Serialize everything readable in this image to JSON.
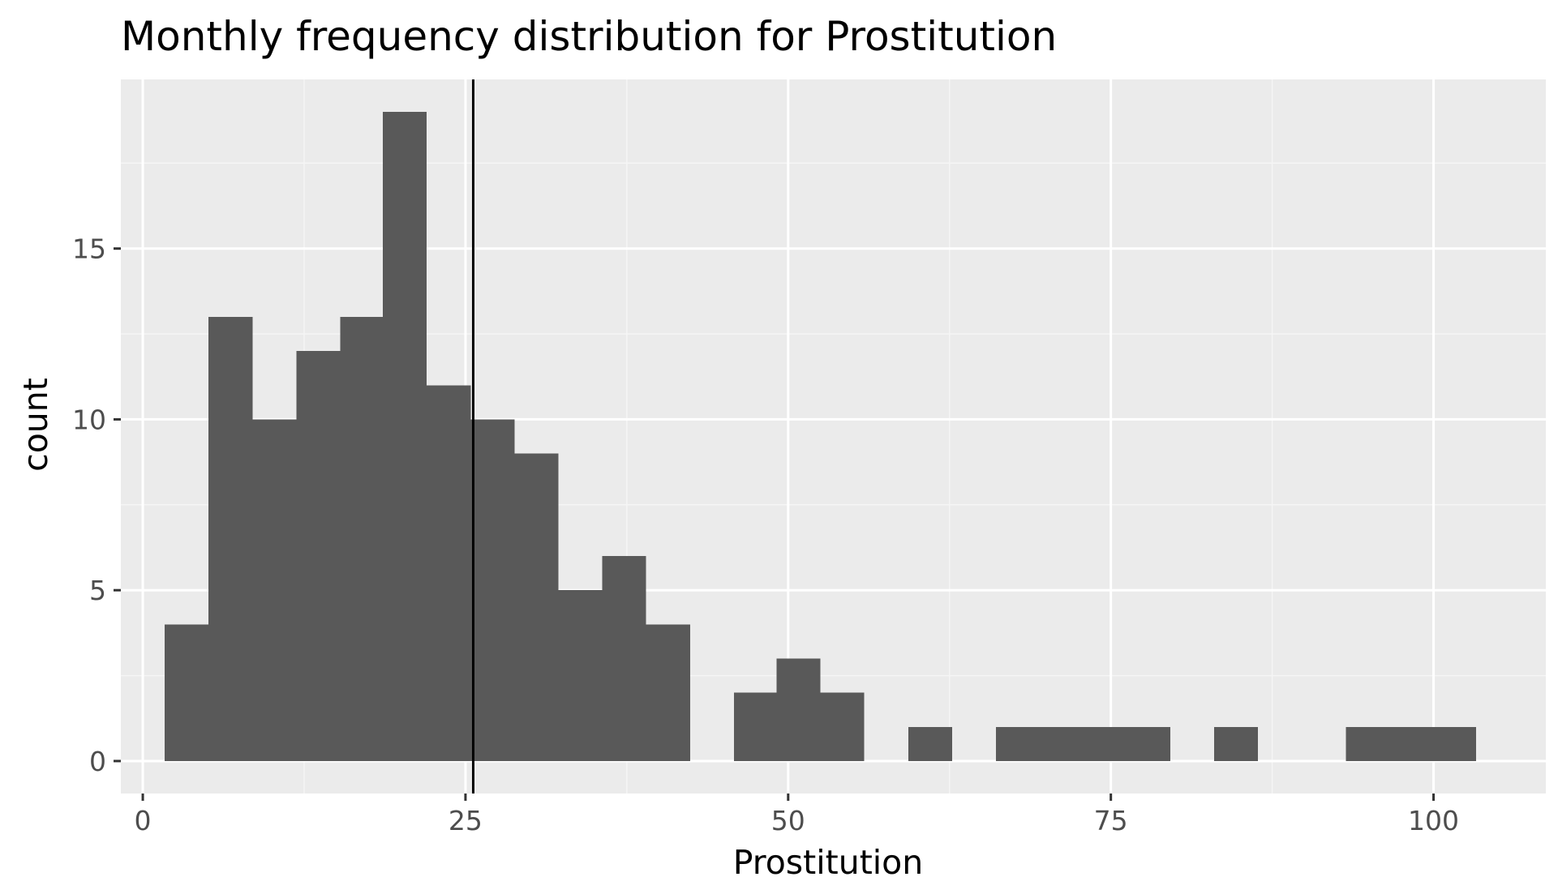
{
  "chart_data": {
    "type": "bar",
    "title": "Monthly frequency distribution for Prostitution",
    "xlabel": "Prostitution",
    "ylabel": "count",
    "xlim": [
      -1.7,
      108.7
    ],
    "ylim": [
      -0.95,
      19.95
    ],
    "x_ticks": [
      0,
      25,
      50,
      75,
      100
    ],
    "x_tick_labels": [
      "0",
      "25",
      "50",
      "75",
      "100"
    ],
    "y_ticks": [
      0,
      5,
      10,
      15
    ],
    "y_tick_labels": [
      "0",
      "5",
      "10",
      "15"
    ],
    "y_minor_gridlines": [
      2.5,
      7.5,
      12.5,
      17.5
    ],
    "x_minor_gridlines": [
      12.5,
      37.5,
      62.5,
      87.5
    ],
    "grid": true,
    "bin_width": 3.39,
    "bins": [
      {
        "x0": 1.7,
        "x1": 5.1,
        "count": 4
      },
      {
        "x0": 5.1,
        "x1": 8.5,
        "count": 13
      },
      {
        "x0": 8.5,
        "x1": 11.9,
        "count": 10
      },
      {
        "x0": 11.9,
        "x1": 15.3,
        "count": 12
      },
      {
        "x0": 15.3,
        "x1": 18.6,
        "count": 13
      },
      {
        "x0": 18.6,
        "x1": 22.0,
        "count": 19
      },
      {
        "x0": 22.0,
        "x1": 25.4,
        "count": 11
      },
      {
        "x0": 25.4,
        "x1": 28.8,
        "count": 10
      },
      {
        "x0": 28.8,
        "x1": 32.2,
        "count": 9
      },
      {
        "x0": 32.2,
        "x1": 35.6,
        "count": 5
      },
      {
        "x0": 35.6,
        "x1": 39.0,
        "count": 6
      },
      {
        "x0": 39.0,
        "x1": 42.4,
        "count": 4
      },
      {
        "x0": 45.8,
        "x1": 49.1,
        "count": 2
      },
      {
        "x0": 49.1,
        "x1": 52.5,
        "count": 3
      },
      {
        "x0": 52.5,
        "x1": 55.9,
        "count": 2
      },
      {
        "x0": 59.3,
        "x1": 62.7,
        "count": 1
      },
      {
        "x0": 66.1,
        "x1": 69.5,
        "count": 1
      },
      {
        "x0": 69.5,
        "x1": 72.9,
        "count": 1
      },
      {
        "x0": 72.9,
        "x1": 76.2,
        "count": 1
      },
      {
        "x0": 76.2,
        "x1": 79.6,
        "count": 1
      },
      {
        "x0": 83.0,
        "x1": 86.4,
        "count": 1
      },
      {
        "x0": 93.2,
        "x1": 96.6,
        "count": 1
      },
      {
        "x0": 96.6,
        "x1": 100.0,
        "count": 1
      },
      {
        "x0": 100.0,
        "x1": 103.3,
        "count": 1
      }
    ],
    "reference_line_x": 25.6,
    "colors": {
      "panel_background": "#ebebeb",
      "grid_major": "#ffffff",
      "grid_minor": "#f5f5f5",
      "bar_fill": "#595959",
      "reference_line": "#000000",
      "tick_mark": "#333333"
    }
  }
}
